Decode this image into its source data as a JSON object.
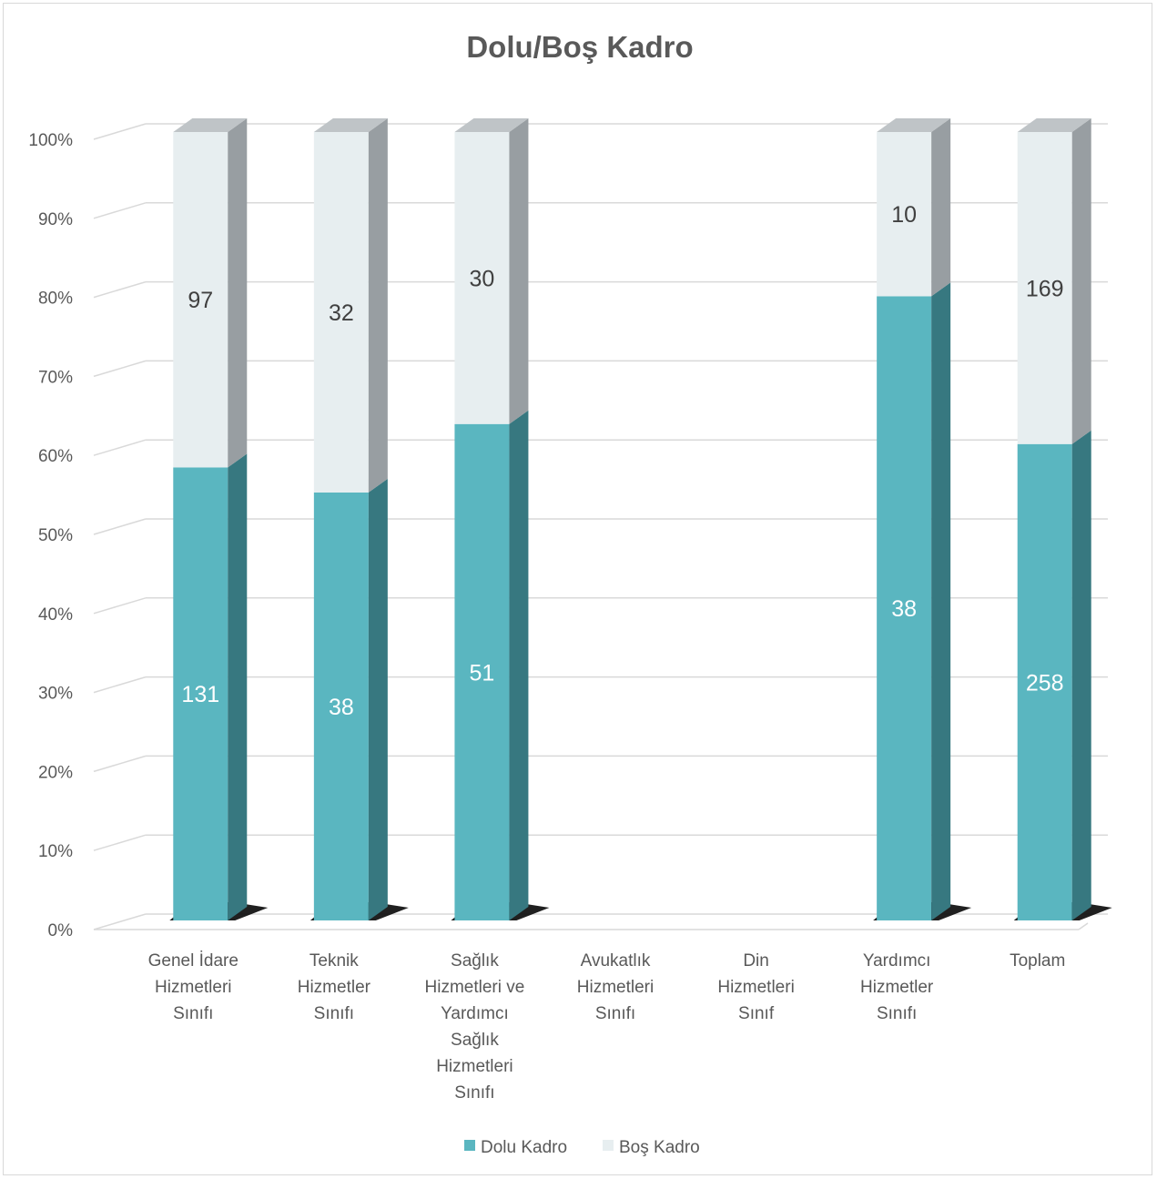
{
  "chart_data": {
    "type": "bar",
    "stacked": "percent",
    "three_d": true,
    "title": "Dolu/Boş Kadro",
    "xlabel": "",
    "ylabel": "",
    "ylim": [
      0,
      100
    ],
    "y_ticks": [
      "0%",
      "10%",
      "20%",
      "30%",
      "40%",
      "50%",
      "60%",
      "70%",
      "80%",
      "90%",
      "100%"
    ],
    "categories": [
      [
        "Genel İdare",
        "Hizmetleri",
        "Sınıfı"
      ],
      [
        "Teknik",
        "Hizmetler",
        "Sınıfı"
      ],
      [
        "Sağlık",
        "Hizmetleri ve",
        "Yardımcı",
        "Sağlık",
        "Hizmetleri",
        "Sınıfı"
      ],
      [
        "Avukatlık",
        "Hizmetleri",
        "Sınıfı"
      ],
      [
        "Din",
        "Hizmetleri",
        "Sınıf"
      ],
      [
        "Yardımcı",
        "Hizmetler",
        "Sınıfı"
      ],
      [
        "Toplam"
      ]
    ],
    "series": [
      {
        "name": "Dolu Kadro",
        "values": [
          131,
          38,
          51,
          0,
          0,
          38,
          258
        ],
        "color": "#5ab6c0"
      },
      {
        "name": "Boş Kadro",
        "values": [
          97,
          32,
          30,
          0,
          0,
          10,
          169
        ],
        "color": "#e7eef0"
      }
    ],
    "grid": true,
    "legend_position": "bottom"
  }
}
